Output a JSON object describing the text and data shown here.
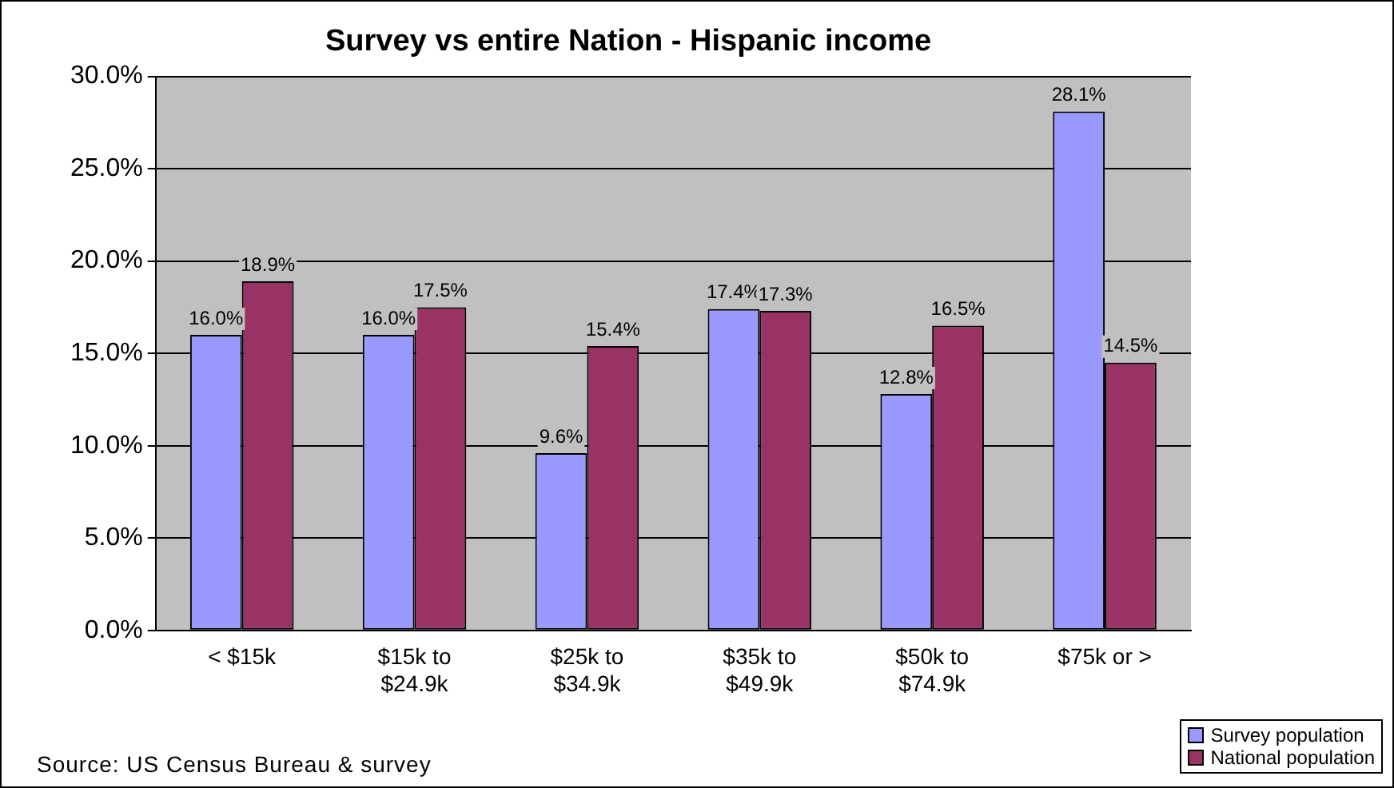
{
  "chart_data": {
    "type": "bar",
    "title": "Survey vs entire Nation - Hispanic income",
    "categories": [
      "< $15k",
      "$15k to $24.9k",
      "$25k to $34.9k",
      "$35k to $49.9k",
      "$50k to $74.9k",
      "$75k or >"
    ],
    "series": [
      {
        "name": "Survey population",
        "color": "#9999ff",
        "values": [
          16.0,
          16.0,
          9.6,
          17.4,
          12.8,
          28.1
        ],
        "value_labels": [
          "16.0%",
          "16.0%",
          "9.6%",
          "17.4%",
          "12.8%",
          "28.1%"
        ]
      },
      {
        "name": "National population",
        "color": "#993366",
        "values": [
          18.9,
          17.5,
          15.4,
          17.3,
          16.5,
          14.5
        ],
        "value_labels": [
          "18.9%",
          "17.5%",
          "15.4%",
          "17.3%",
          "16.5%",
          "14.5%"
        ]
      }
    ],
    "ylim": [
      0,
      30
    ],
    "yticks": [
      {
        "value": 0,
        "label": "0.0%"
      },
      {
        "value": 5,
        "label": "5.0%"
      },
      {
        "value": 10,
        "label": "10.0%"
      },
      {
        "value": 15,
        "label": "15.0%"
      },
      {
        "value": 20,
        "label": "20.0%"
      },
      {
        "value": 25,
        "label": "25.0%"
      },
      {
        "value": 30,
        "label": "30.0%"
      }
    ],
    "grid": "y",
    "legend": "bottom right",
    "annotations": [
      "Source: US Census Bureau & survey"
    ]
  }
}
